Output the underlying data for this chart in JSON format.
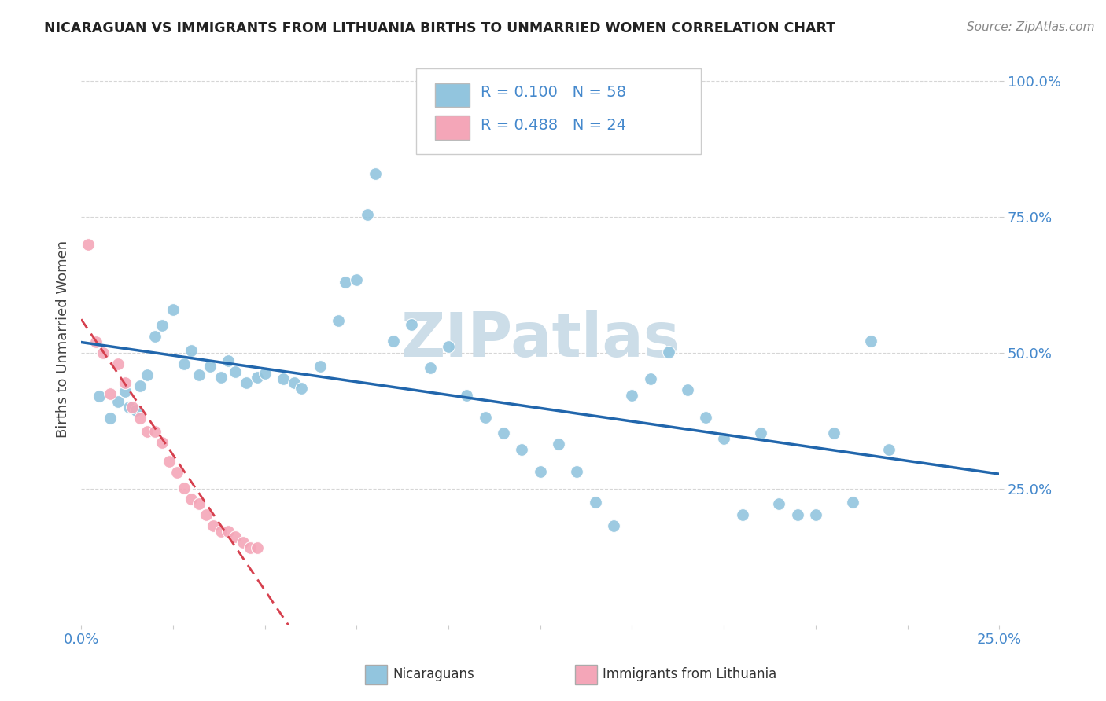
{
  "title": "NICARAGUAN VS IMMIGRANTS FROM LITHUANIA BIRTHS TO UNMARRIED WOMEN CORRELATION CHART",
  "source": "Source: ZipAtlas.com",
  "ylabel": "Births to Unmarried Women",
  "legend_label1": "Nicaraguans",
  "legend_label2": "Immigrants from Lithuania",
  "r1": 0.1,
  "n1": 58,
  "r2": 0.488,
  "n2": 24,
  "blue_color": "#92c5de",
  "pink_color": "#f4a6b8",
  "blue_line_color": "#2166ac",
  "pink_line_color": "#d6404e",
  "axis_color": "#4488cc",
  "watermark_color": "#ccdde8",
  "blue_scatter": [
    [
      0.005,
      0.42
    ],
    [
      0.008,
      0.38
    ],
    [
      0.01,
      0.41
    ],
    [
      0.012,
      0.43
    ],
    [
      0.013,
      0.4
    ],
    [
      0.015,
      0.395
    ],
    [
      0.016,
      0.44
    ],
    [
      0.018,
      0.46
    ],
    [
      0.02,
      0.53
    ],
    [
      0.022,
      0.55
    ],
    [
      0.025,
      0.58
    ],
    [
      0.028,
      0.48
    ],
    [
      0.03,
      0.505
    ],
    [
      0.032,
      0.46
    ],
    [
      0.035,
      0.475
    ],
    [
      0.038,
      0.455
    ],
    [
      0.04,
      0.485
    ],
    [
      0.042,
      0.465
    ],
    [
      0.045,
      0.445
    ],
    [
      0.048,
      0.455
    ],
    [
      0.05,
      0.462
    ],
    [
      0.055,
      0.452
    ],
    [
      0.058,
      0.445
    ],
    [
      0.06,
      0.435
    ],
    [
      0.065,
      0.475
    ],
    [
      0.07,
      0.56
    ],
    [
      0.072,
      0.63
    ],
    [
      0.075,
      0.635
    ],
    [
      0.078,
      0.755
    ],
    [
      0.08,
      0.83
    ],
    [
      0.085,
      0.522
    ],
    [
      0.09,
      0.552
    ],
    [
      0.095,
      0.472
    ],
    [
      0.1,
      0.512
    ],
    [
      0.105,
      0.422
    ],
    [
      0.11,
      0.382
    ],
    [
      0.115,
      0.352
    ],
    [
      0.12,
      0.322
    ],
    [
      0.125,
      0.282
    ],
    [
      0.13,
      0.332
    ],
    [
      0.135,
      0.282
    ],
    [
      0.14,
      0.225
    ],
    [
      0.145,
      0.182
    ],
    [
      0.15,
      0.422
    ],
    [
      0.155,
      0.452
    ],
    [
      0.16,
      0.502
    ],
    [
      0.165,
      0.432
    ],
    [
      0.17,
      0.382
    ],
    [
      0.175,
      0.342
    ],
    [
      0.18,
      0.202
    ],
    [
      0.185,
      0.352
    ],
    [
      0.19,
      0.222
    ],
    [
      0.195,
      0.202
    ],
    [
      0.2,
      0.202
    ],
    [
      0.205,
      0.352
    ],
    [
      0.21,
      0.225
    ],
    [
      0.215,
      0.522
    ],
    [
      0.22,
      0.322
    ]
  ],
  "pink_scatter": [
    [
      0.002,
      0.7
    ],
    [
      0.004,
      0.52
    ],
    [
      0.006,
      0.5
    ],
    [
      0.008,
      0.425
    ],
    [
      0.01,
      0.48
    ],
    [
      0.012,
      0.445
    ],
    [
      0.014,
      0.4
    ],
    [
      0.016,
      0.38
    ],
    [
      0.018,
      0.355
    ],
    [
      0.02,
      0.355
    ],
    [
      0.022,
      0.335
    ],
    [
      0.024,
      0.3
    ],
    [
      0.026,
      0.28
    ],
    [
      0.028,
      0.252
    ],
    [
      0.03,
      0.232
    ],
    [
      0.032,
      0.222
    ],
    [
      0.034,
      0.202
    ],
    [
      0.036,
      0.182
    ],
    [
      0.038,
      0.172
    ],
    [
      0.04,
      0.172
    ],
    [
      0.042,
      0.162
    ],
    [
      0.044,
      0.152
    ],
    [
      0.046,
      0.142
    ],
    [
      0.048,
      0.142
    ]
  ],
  "xlim": [
    0.0,
    0.25
  ],
  "ylim": [
    0.0,
    1.05
  ],
  "yticks": [
    0.25,
    0.5,
    0.75,
    1.0
  ],
  "ytick_labels": [
    "25.0%",
    "50.0%",
    "75.0%",
    "100.0%"
  ],
  "grid_color": "#cccccc",
  "background_color": "#ffffff"
}
